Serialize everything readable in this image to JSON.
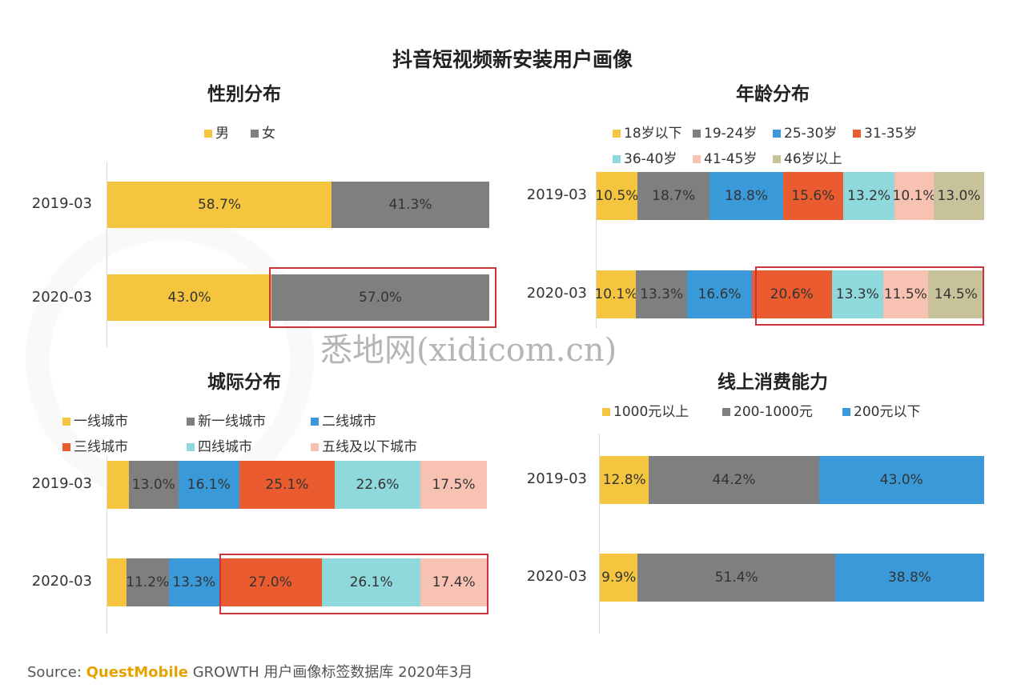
{
  "title": "抖音短视频新安装用户画像",
  "watermark": "悉地网(xidicom.cn)",
  "source": {
    "prefix": "Source:",
    "brand": "QuestMobile",
    "rest": "GROWTH 用户画像标签数据库 2020年3月"
  },
  "colors": {
    "yellow": "#f5c53f",
    "gray": "#7f7f7f",
    "blue": "#3a9ad9",
    "orange": "#ea5b2f",
    "cyan": "#8fd8db",
    "pink": "#f8c2b3",
    "khaki": "#c8c29a",
    "highlight": "#c9353a"
  },
  "chart_data": [
    {
      "type": "bar",
      "stacked": true,
      "orientation": "horizontal",
      "title": "性别分布",
      "categories": [
        "2019-03",
        "2020-03"
      ],
      "series": [
        {
          "name": "男",
          "color": "#f5c53f",
          "values": [
            58.7,
            43.0
          ]
        },
        {
          "name": "女",
          "color": "#7f7f7f",
          "values": [
            41.3,
            57.0
          ]
        }
      ],
      "labels": [
        [
          "58.7%",
          "41.3%"
        ],
        [
          "43.0%",
          "57.0%"
        ]
      ],
      "highlight": {
        "row": 1,
        "from": 1,
        "to": 1
      }
    },
    {
      "type": "bar",
      "stacked": true,
      "orientation": "horizontal",
      "title": "年龄分布",
      "categories": [
        "2019-03",
        "2020-03"
      ],
      "series": [
        {
          "name": "18岁以下",
          "color": "#f5c53f",
          "values": [
            10.5,
            10.1
          ]
        },
        {
          "name": "19-24岁",
          "color": "#7f7f7f",
          "values": [
            18.7,
            13.3
          ]
        },
        {
          "name": "25-30岁",
          "color": "#3a9ad9",
          "values": [
            18.8,
            16.6
          ]
        },
        {
          "name": "31-35岁",
          "color": "#ea5b2f",
          "values": [
            15.6,
            20.6
          ]
        },
        {
          "name": "36-40岁",
          "color": "#8fd8db",
          "values": [
            13.2,
            13.3
          ]
        },
        {
          "name": "41-45岁",
          "color": "#f8c2b3",
          "values": [
            10.1,
            11.5
          ]
        },
        {
          "name": "46岁以上",
          "color": "#c8c29a",
          "values": [
            13.0,
            14.5
          ]
        }
      ],
      "labels": [
        [
          "10.5%",
          "18.7%",
          "18.8%",
          "15.6%",
          "13.2%",
          "10.1%",
          "13.0%"
        ],
        [
          "10.1%",
          "13.3%",
          "16.6%",
          "20.6%",
          "13.3%",
          "11.5%",
          "14.5%"
        ]
      ],
      "highlight": {
        "row": 1,
        "from": 3,
        "to": 6
      }
    },
    {
      "type": "bar",
      "stacked": true,
      "orientation": "horizontal",
      "title": "城际分布",
      "categories": [
        "2019-03",
        "2020-03"
      ],
      "series": [
        {
          "name": "一线城市",
          "color": "#f5c53f",
          "values": [
            5.7,
            5.0
          ]
        },
        {
          "name": "新一线城市",
          "color": "#7f7f7f",
          "values": [
            13.0,
            11.2
          ]
        },
        {
          "name": "二线城市",
          "color": "#3a9ad9",
          "values": [
            16.1,
            13.3
          ]
        },
        {
          "name": "三线城市",
          "color": "#ea5b2f",
          "values": [
            25.1,
            27.0
          ]
        },
        {
          "name": "四线城市",
          "color": "#8fd8db",
          "values": [
            22.6,
            26.1
          ]
        },
        {
          "name": "五线及以下城市",
          "color": "#f8c2b3",
          "values": [
            17.5,
            17.4
          ]
        }
      ],
      "labels": [
        [
          "",
          "13.0%",
          "16.1%",
          "25.1%",
          "22.6%",
          "17.5%"
        ],
        [
          "",
          "11.2%",
          "13.3%",
          "27.0%",
          "26.1%",
          "17.4%"
        ]
      ],
      "highlight": {
        "row": 1,
        "from": 3,
        "to": 5
      }
    },
    {
      "type": "bar",
      "stacked": true,
      "orientation": "horizontal",
      "title": "线上消费能力",
      "categories": [
        "2019-03",
        "2020-03"
      ],
      "series": [
        {
          "name": "1000元以上",
          "color": "#f5c53f",
          "values": [
            12.8,
            9.9
          ]
        },
        {
          "name": "200-1000元",
          "color": "#7f7f7f",
          "values": [
            44.2,
            51.4
          ]
        },
        {
          "name": "200元以下",
          "color": "#3a9ad9",
          "values": [
            43.0,
            38.8
          ]
        }
      ],
      "labels": [
        [
          "12.8%",
          "44.2%",
          "43.0%"
        ],
        [
          "9.9%",
          "51.4%",
          "38.8%"
        ]
      ]
    }
  ]
}
